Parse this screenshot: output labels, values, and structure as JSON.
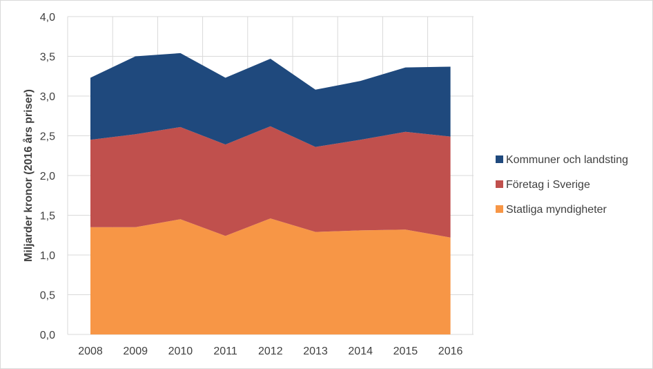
{
  "chart_data": {
    "type": "area",
    "stacked": true,
    "x": [
      "2008",
      "2009",
      "2010",
      "2011",
      "2012",
      "2013",
      "2014",
      "2015",
      "2016"
    ],
    "series": [
      {
        "name": "Statliga myndigheter",
        "color": "#f79646",
        "values": [
          1.35,
          1.35,
          1.45,
          1.24,
          1.46,
          1.29,
          1.31,
          1.32,
          1.22
        ]
      },
      {
        "name": "Företag i Sverige",
        "color": "#c0504d",
        "values": [
          1.1,
          1.17,
          1.16,
          1.15,
          1.16,
          1.07,
          1.14,
          1.23,
          1.27
        ]
      },
      {
        "name": "Kommuner och landsting",
        "color": "#1f497d",
        "values": [
          0.78,
          0.98,
          0.93,
          0.84,
          0.85,
          0.72,
          0.74,
          0.81,
          0.88
        ]
      }
    ],
    "ylabel": "Miljarder kronor (2016 års priser)",
    "ylim": [
      0,
      4.0
    ],
    "yticks": [
      "0,0",
      "0,5",
      "1,0",
      "1,5",
      "2,0",
      "2,5",
      "3,0",
      "3,5",
      "4,0"
    ],
    "grid": true,
    "legend_position": "right",
    "legend_order": [
      "Kommuner och landsting",
      "Företag i Sverige",
      "Statliga myndigheter"
    ]
  }
}
